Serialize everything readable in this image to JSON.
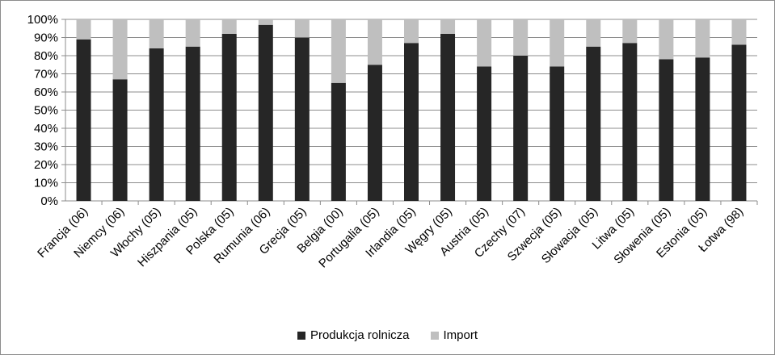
{
  "chart_data": {
    "type": "bar",
    "stacked": true,
    "percent": true,
    "categories": [
      "Francja (06)",
      "Niemcy (06)",
      "Włochy (05)",
      "Hiszpania (05)",
      "Polska (05)",
      "Rumunia (06)",
      "Grecja (05)",
      "Belgia (00)",
      "Portugalia (05)",
      "Irlandia (05)",
      "Węgry (05)",
      "Austria (05)",
      "Czechy (07)",
      "Szwecja (05)",
      "Słowacja (05)",
      "Litwa (05)",
      "Słowenia (05)",
      "Estonia (05)",
      "Łotwa (98)"
    ],
    "series": [
      {
        "name": "Produkcja rolnicza",
        "color": "#262626",
        "values": [
          89,
          67,
          84,
          85,
          92,
          97,
          90,
          65,
          75,
          87,
          92,
          74,
          80,
          74,
          85,
          87,
          78,
          79,
          86
        ]
      },
      {
        "name": "Import",
        "color": "#bfbfbf",
        "values": [
          11,
          33,
          16,
          15,
          8,
          3,
          10,
          35,
          25,
          13,
          8,
          26,
          20,
          26,
          15,
          13,
          22,
          21,
          14
        ]
      }
    ],
    "yticks": [
      "0%",
      "10%",
      "20%",
      "30%",
      "40%",
      "50%",
      "60%",
      "70%",
      "80%",
      "90%",
      "100%"
    ],
    "ylim": [
      0,
      100
    ],
    "grid": true,
    "legend": "bottom"
  }
}
